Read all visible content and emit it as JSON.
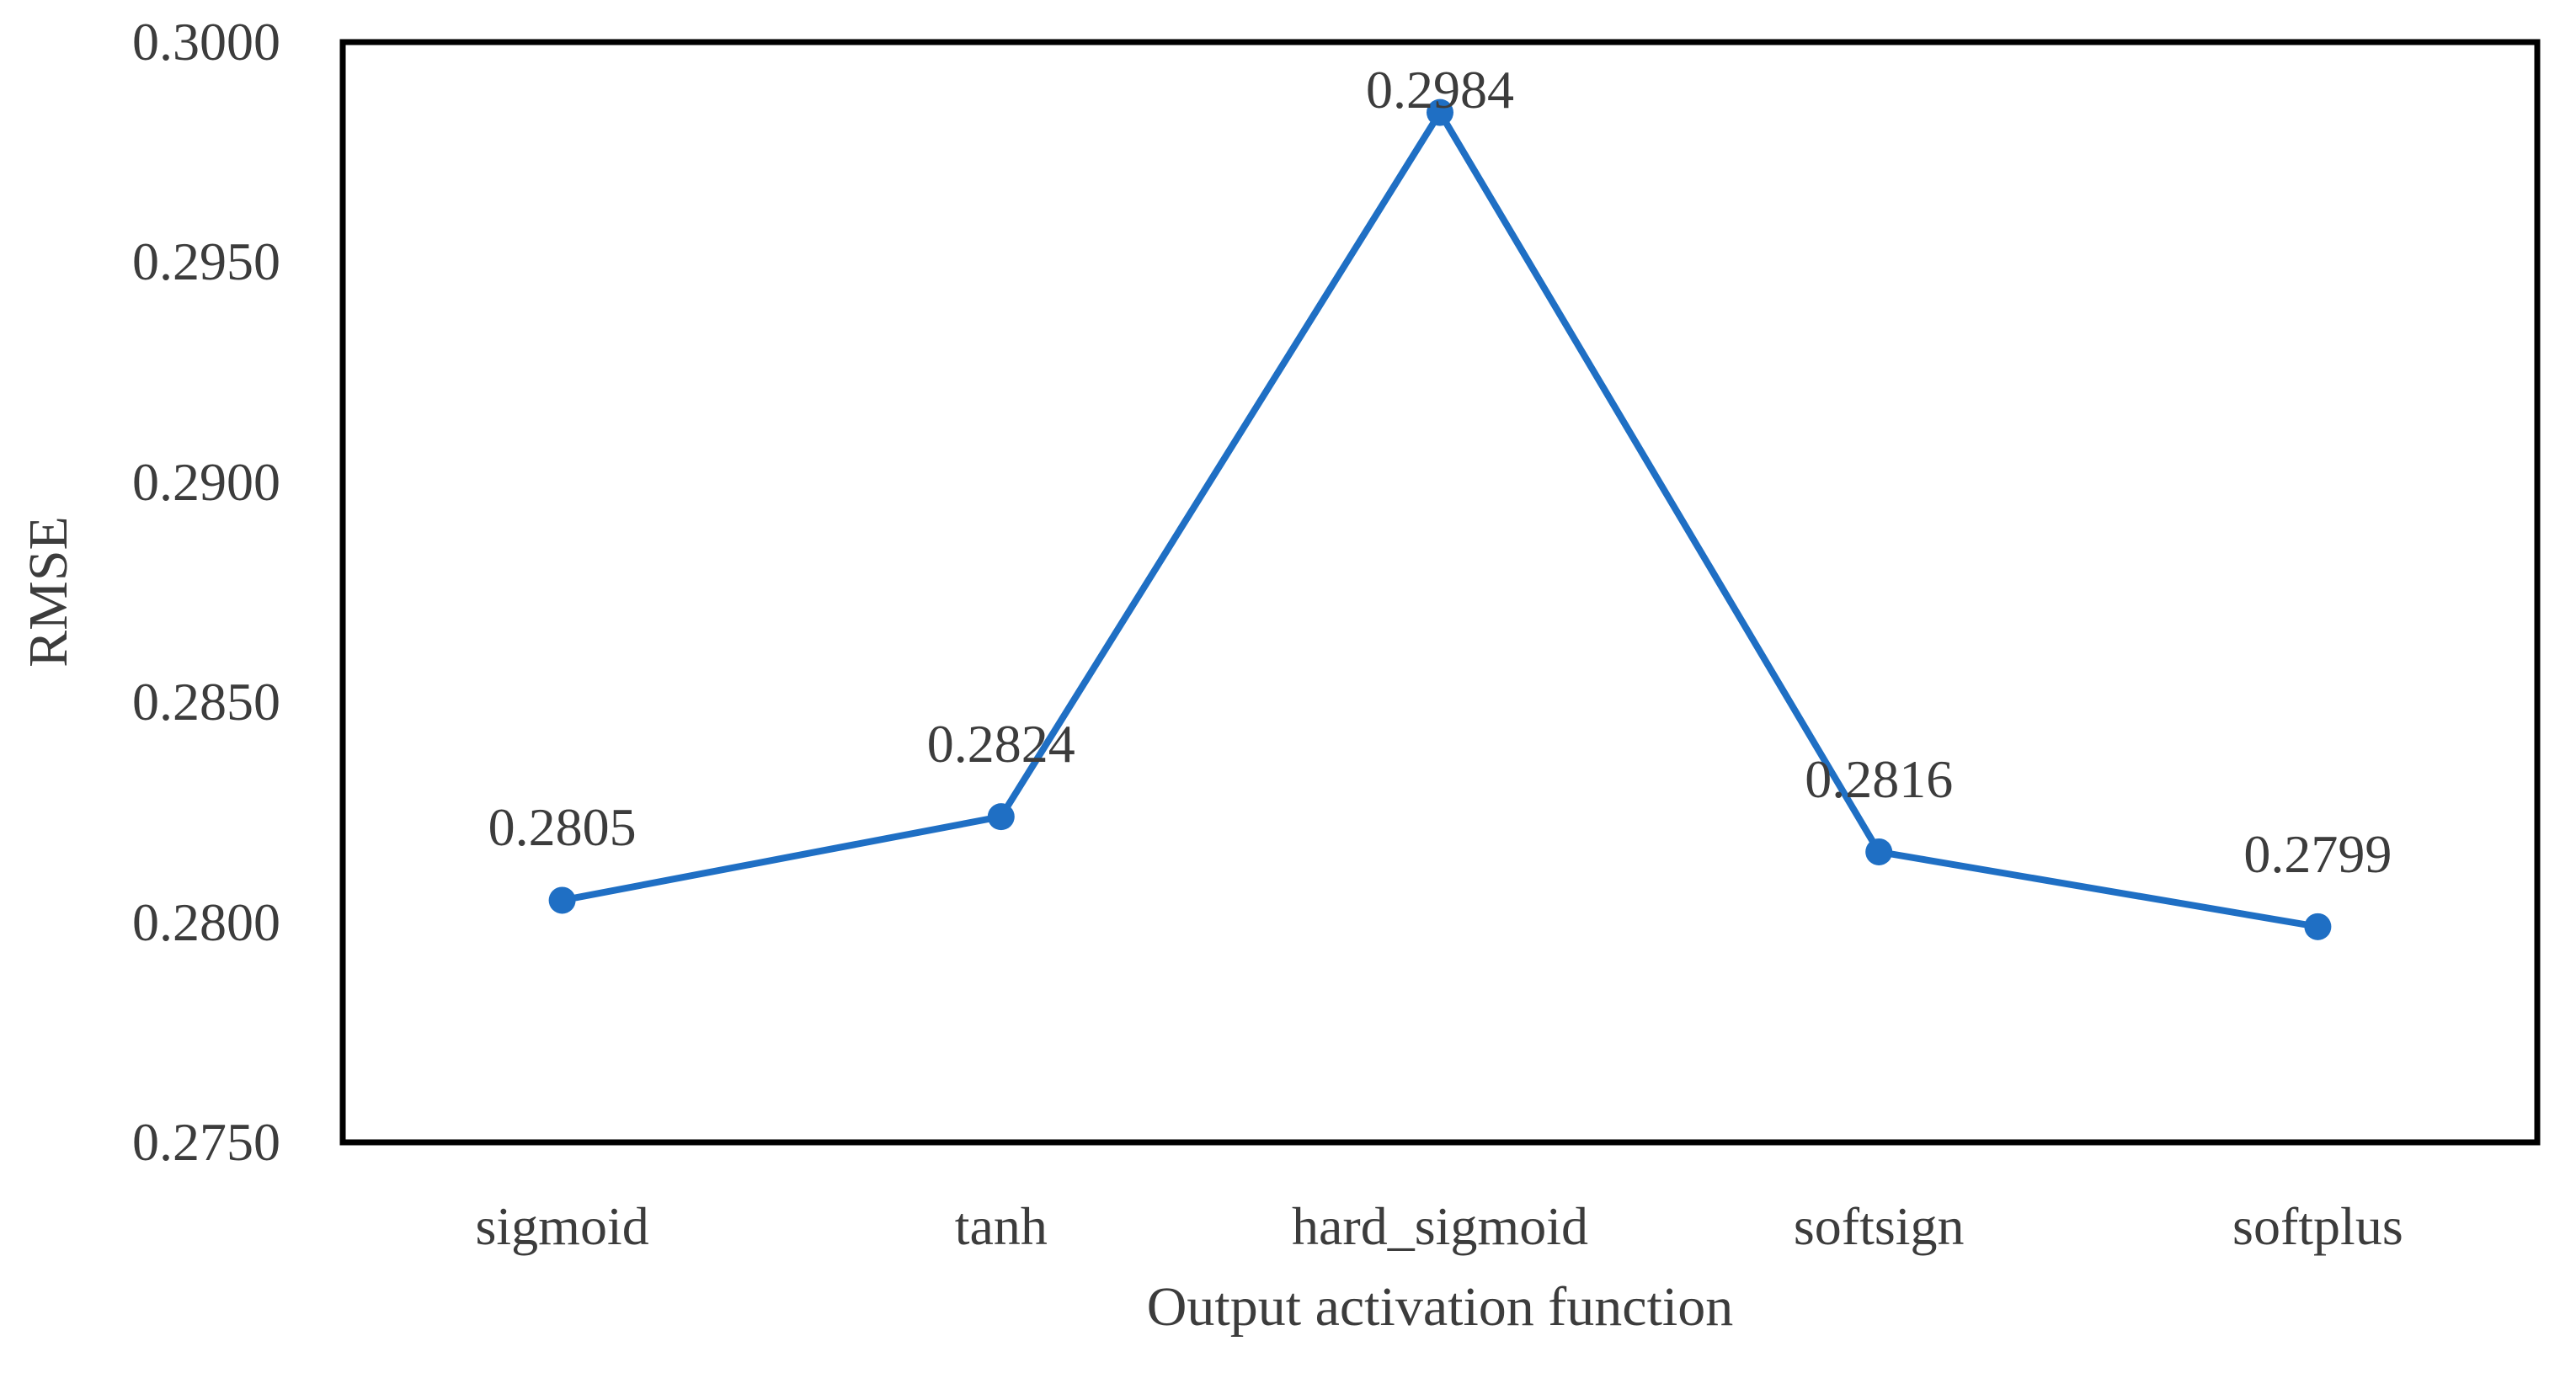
{
  "chart_data": {
    "type": "line",
    "title": "",
    "xlabel": "Output activation function",
    "ylabel": "RMSE",
    "categories": [
      "sigmoid",
      "tanh",
      "hard_sigmoid",
      "softsign",
      "softplus"
    ],
    "series": [
      {
        "name": "RMSE",
        "values": [
          0.2805,
          0.2824,
          0.2984,
          0.2816,
          0.2799
        ]
      }
    ],
    "point_labels": [
      "0.2805",
      "0.2824",
      "0.2984",
      "0.2816",
      "0.2799"
    ],
    "y_ticks": [
      "0.3000",
      "0.2950",
      "0.2900",
      "0.2850",
      "0.2800",
      "0.2750"
    ],
    "ylim": [
      0.275,
      0.3
    ],
    "grid": false,
    "legend": "none",
    "marker": "circle",
    "colors": {
      "line": "#1F6FC4",
      "marker": "#1F6FC4",
      "text": "#3C3C3C",
      "plot_border": "#000000",
      "background": "#FFFFFF"
    }
  }
}
